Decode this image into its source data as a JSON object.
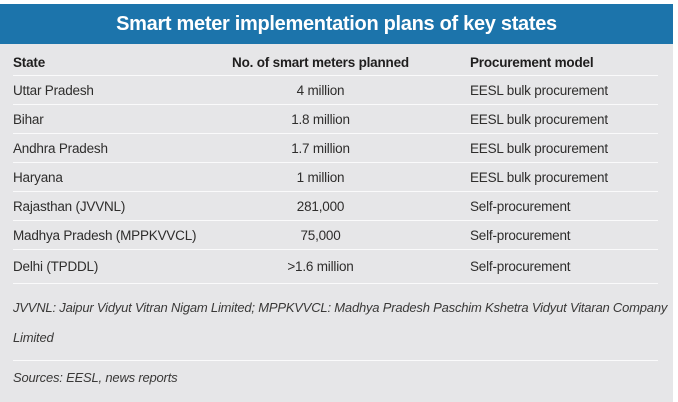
{
  "title": "Smart meter implementation plans of key states",
  "colors": {
    "title_bar_bg": "#1c74ab",
    "title_text": "#ffffff",
    "body_bg": "#e6e6e8",
    "separator_line": "#fafafb",
    "text": "#2e2d2c"
  },
  "table": {
    "columns": [
      "State",
      "No. of smart meters planned",
      "Procurement model"
    ],
    "rows": [
      [
        "Uttar Pradesh",
        "4 million",
        "EESL bulk procurement"
      ],
      [
        "Bihar",
        "1.8 million",
        "EESL bulk procurement"
      ],
      [
        "Andhra Pradesh",
        "1.7 million",
        "EESL bulk procurement"
      ],
      [
        "Haryana",
        "1 million",
        "EESL bulk procurement"
      ],
      [
        "Rajasthan (JVVNL)",
        "281,000",
        "Self-procurement"
      ],
      [
        "Madhya Pradesh (MPPKVVCL)",
        "75,000",
        "Self-procurement"
      ],
      [
        "Delhi (TPDDL)",
        ">1.6 million",
        "Self-procurement"
      ]
    ]
  },
  "footnote_lines": [
    "JVVNL: Jaipur Vidyut Vitran Nigam Limited; MPPKVVCL: Madhya Pradesh Paschim Kshetra Vidyut Vitaran Company",
    "Limited"
  ],
  "sources": "Sources: EESL, news reports",
  "chart_data": {
    "type": "table",
    "title": "Smart meter implementation plans of key states",
    "columns": [
      "State",
      "No. of smart meters planned",
      "Procurement model"
    ],
    "rows": [
      {
        "state": "Uttar Pradesh",
        "meters_planned": "4 million",
        "procurement_model": "EESL bulk procurement"
      },
      {
        "state": "Bihar",
        "meters_planned": "1.8 million",
        "procurement_model": "EESL bulk procurement"
      },
      {
        "state": "Andhra Pradesh",
        "meters_planned": "1.7 million",
        "procurement_model": "EESL bulk procurement"
      },
      {
        "state": "Haryana",
        "meters_planned": "1 million",
        "procurement_model": "EESL bulk procurement"
      },
      {
        "state": "Rajasthan (JVVNL)",
        "meters_planned": "281,000",
        "procurement_model": "Self-procurement"
      },
      {
        "state": "Madhya Pradesh (MPPKVVCL)",
        "meters_planned": "75,000",
        "procurement_model": "Self-procurement"
      },
      {
        "state": "Delhi (TPDDL)",
        "meters_planned": ">1.6 million",
        "procurement_model": "Self-procurement"
      }
    ],
    "footnote": "JVVNL: Jaipur Vidyut Vitran Nigam Limited; MPPKVVCL: Madhya Pradesh Paschim Kshetra Vidyut Vitaran Company Limited",
    "sources": "Sources: EESL, news reports",
    "layout": "blue title bar, gray body, white row separator lines, middle column centered"
  }
}
